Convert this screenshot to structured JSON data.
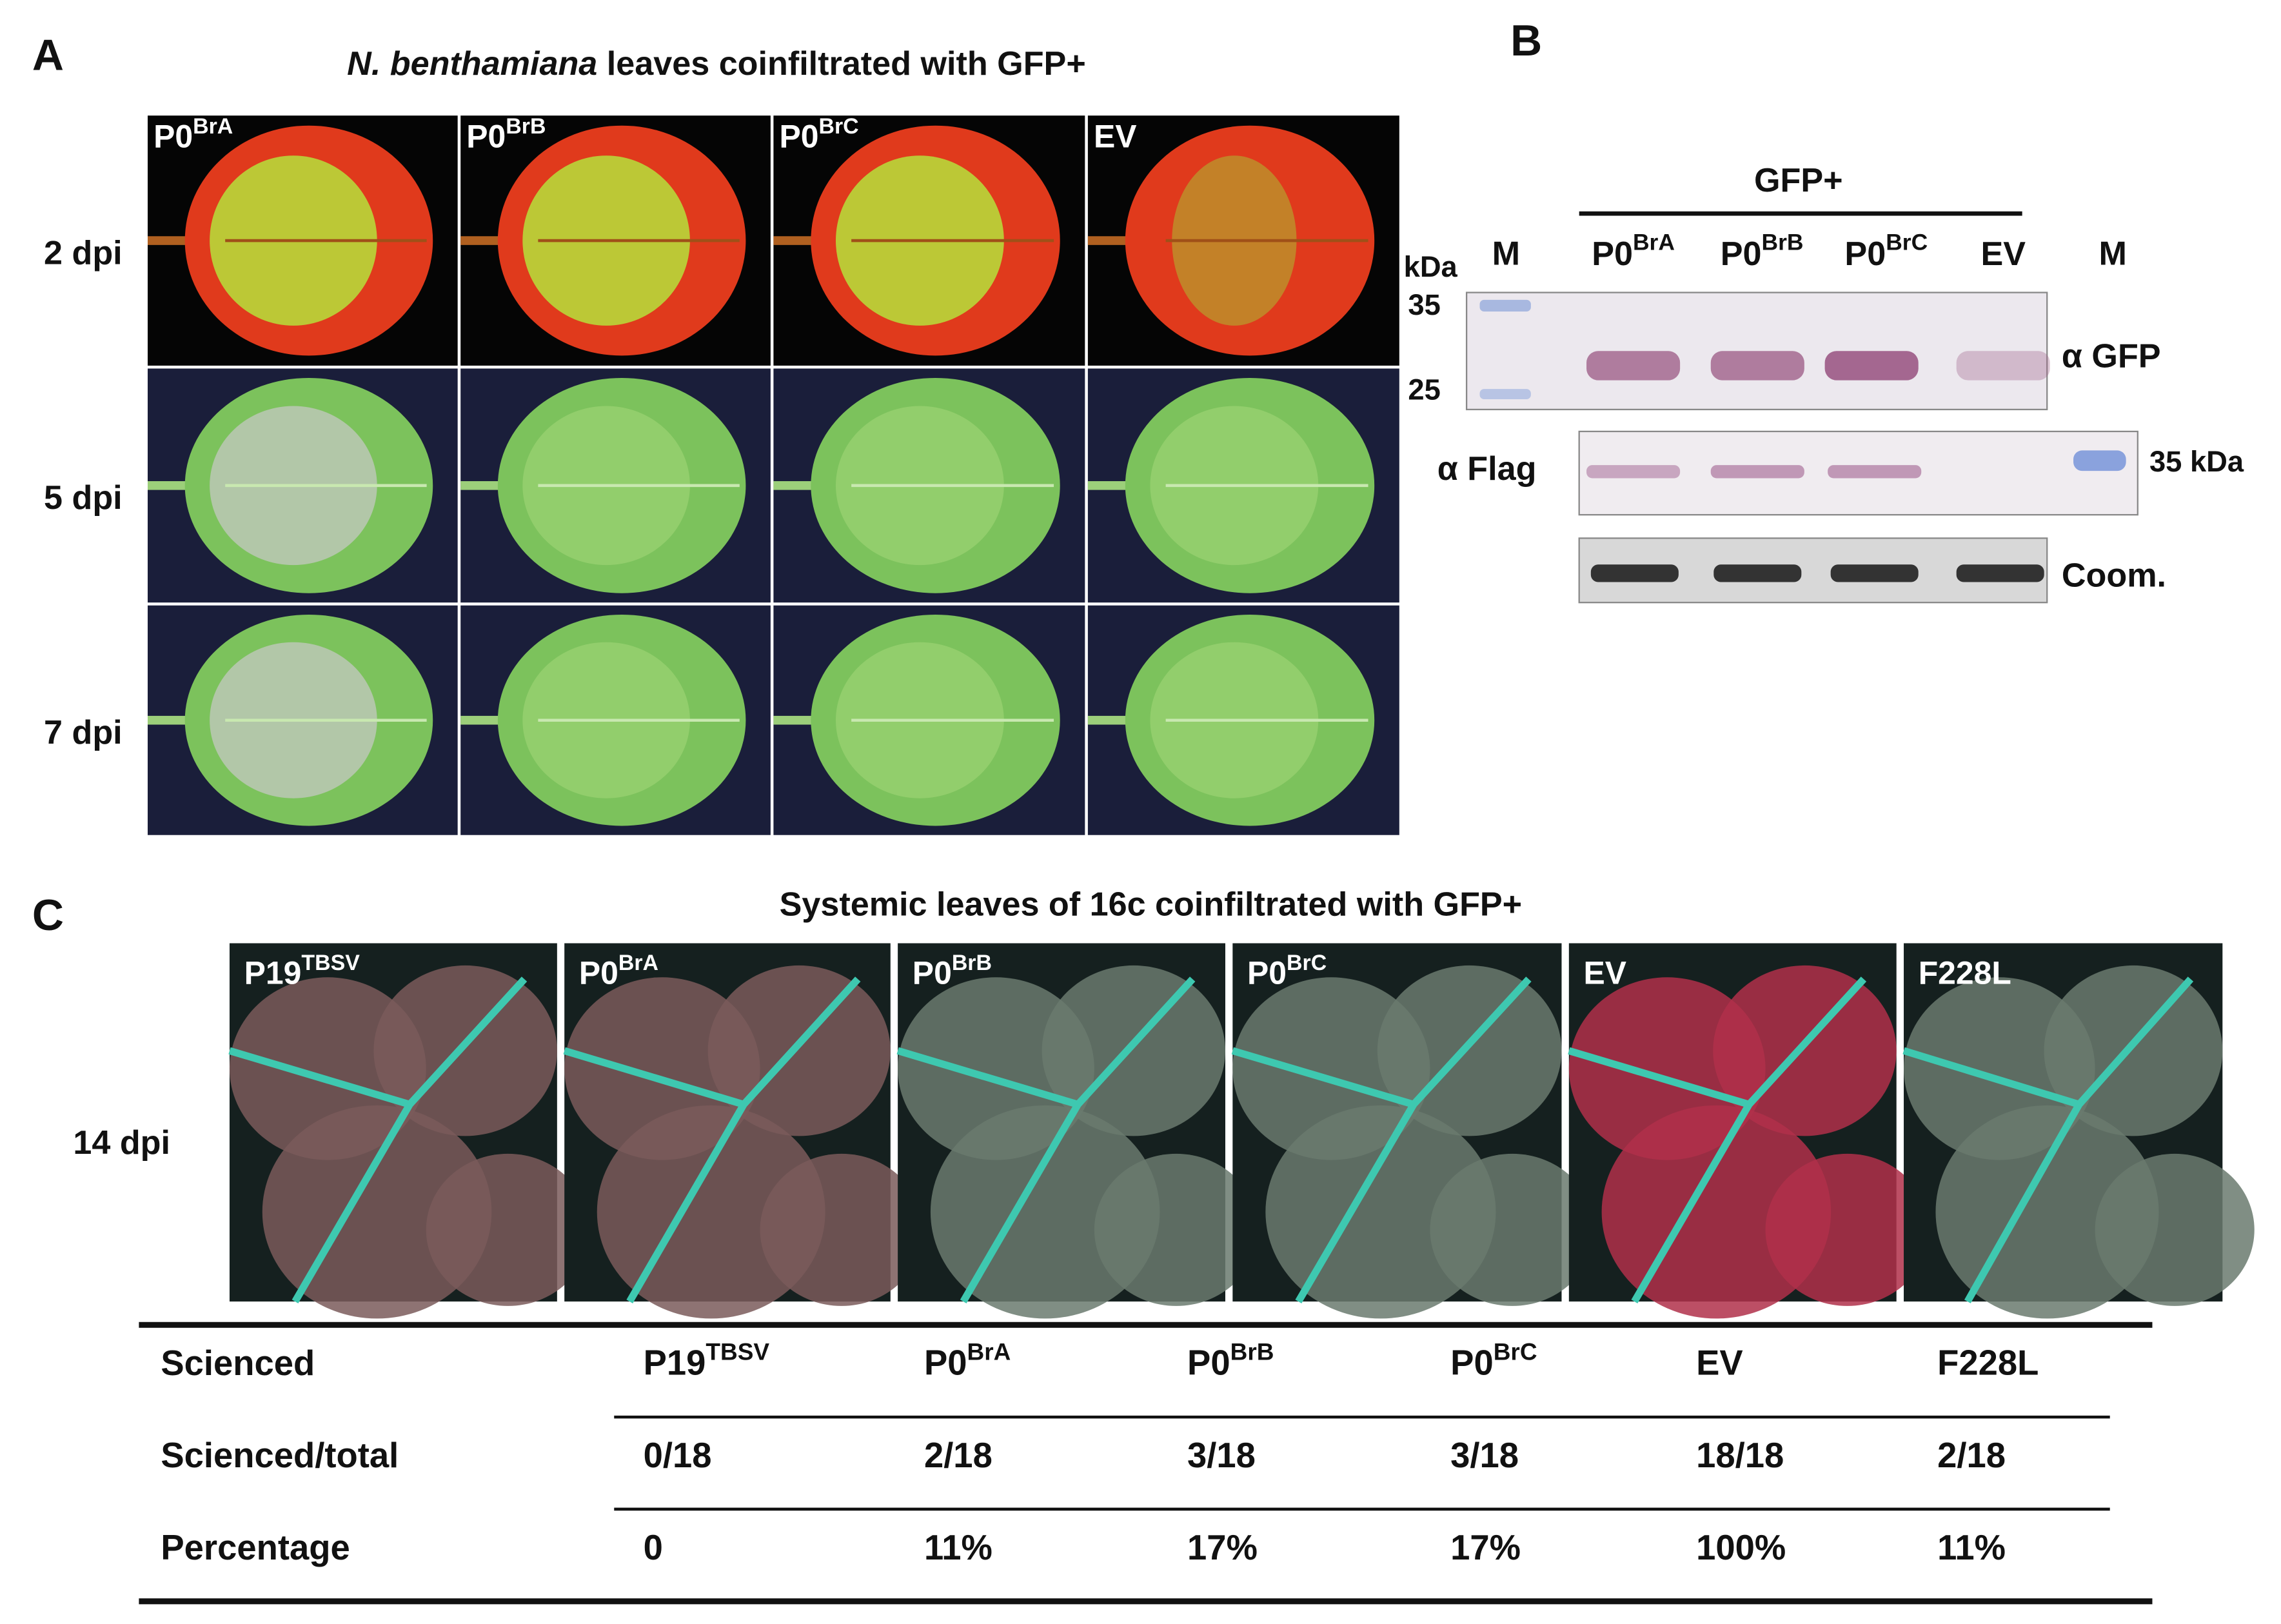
{
  "panel_a": {
    "letter": "A",
    "title_italic": "N. benthamiana",
    "title_rest": " leaves coinfiltrated with GFP+",
    "columns": [
      {
        "base": "P0",
        "sup": "BrA"
      },
      {
        "base": "P0",
        "sup": "BrB"
      },
      {
        "base": "P0",
        "sup": "BrC"
      },
      {
        "base": "EV"
      }
    ],
    "rows": [
      "2 dpi",
      "5 dpi",
      "7 dpi"
    ]
  },
  "panel_b": {
    "letter": "B",
    "group": "GFP+",
    "kda": "kDa",
    "marker": "M",
    "lanes": [
      {
        "base": "P0",
        "sup": "BrA"
      },
      {
        "base": "P0",
        "sup": "BrB"
      },
      {
        "base": "P0",
        "sup": "BrC"
      },
      {
        "base": "EV"
      }
    ],
    "size_marks": [
      "35",
      "25"
    ],
    "blots": [
      "α GFP",
      "α Flag",
      "Coom."
    ],
    "marker_right": "35 kDa"
  },
  "panel_c": {
    "letter": "C",
    "title": "Systemic leaves of 16c coinfiltrated with GFP+",
    "row_label": "14 dpi",
    "columns": [
      {
        "base": "P19",
        "sup": "TBSV"
      },
      {
        "base": "P0",
        "sup": "BrA"
      },
      {
        "base": "P0",
        "sup": "BrB"
      },
      {
        "base": "P0",
        "sup": "BrC"
      },
      {
        "base": "EV"
      },
      {
        "base": "F228L"
      }
    ]
  },
  "table": {
    "header": "Scienced",
    "rows": [
      {
        "label": "Scienced/total",
        "cells": [
          "0/18",
          "2/18",
          "3/18",
          "3/18",
          "18/18",
          "2/18"
        ]
      },
      {
        "label": "Percentage",
        "cells": [
          "0",
          "11%",
          "17%",
          "17%",
          "100%",
          "11%"
        ]
      }
    ]
  }
}
